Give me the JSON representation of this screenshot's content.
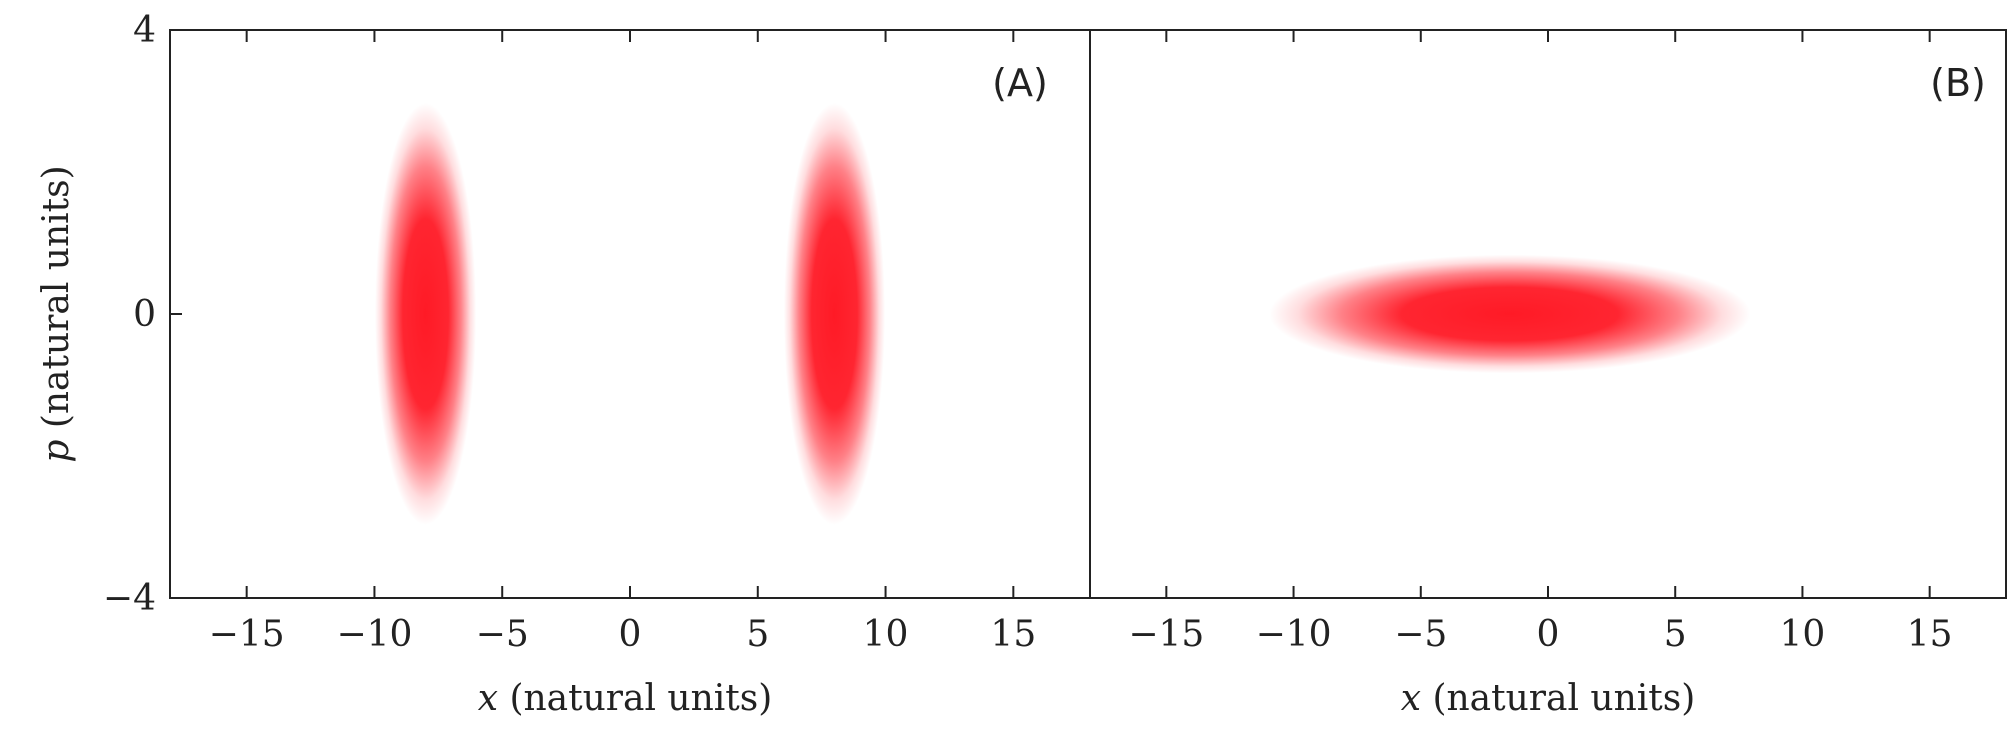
{
  "chart_data": [
    {
      "type": "heatmap",
      "panel_label": "(A)",
      "xlabel_var": "x",
      "xlabel_rest": " (natural units)",
      "ylabel_var": "p",
      "ylabel_rest": " (natural units)",
      "xlim": [
        -18,
        18
      ],
      "ylim": [
        -4,
        4
      ],
      "xticks": [
        -15,
        -10,
        -5,
        0,
        5,
        10,
        15
      ],
      "yticks": [
        -4,
        0,
        4
      ],
      "color": "#ff1a26",
      "blobs": [
        {
          "cx": -8,
          "cy": 0,
          "sigma_x": 0.9,
          "sigma_p": 1.35
        },
        {
          "cx": 8,
          "cy": 0,
          "sigma_x": 0.9,
          "sigma_p": 1.35
        }
      ]
    },
    {
      "type": "heatmap",
      "panel_label": "(B)",
      "xlabel_var": "x",
      "xlabel_rest": " (natural units)",
      "xlim": [
        -18,
        18
      ],
      "ylim": [
        -4,
        4
      ],
      "xticks": [
        -15,
        -10,
        -5,
        0,
        5,
        10,
        15
      ],
      "color": "#ff1a26",
      "blobs": [
        {
          "cx": -1.5,
          "cy": 0,
          "sigma_x": 4.3,
          "sigma_p": 0.38
        }
      ]
    }
  ]
}
